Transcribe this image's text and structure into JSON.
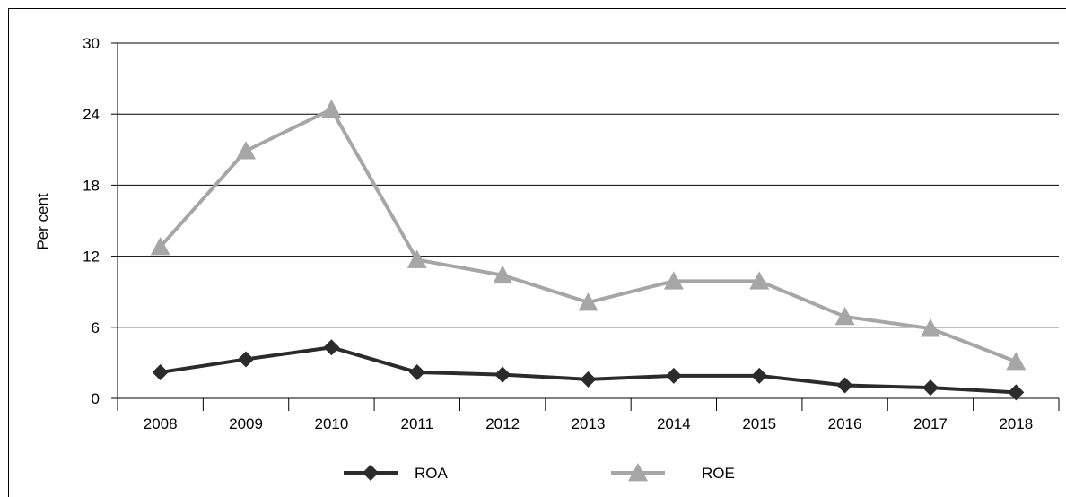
{
  "figure_title_clipped": "",
  "chart_data": {
    "type": "line",
    "title": "",
    "xlabel": "",
    "ylabel": "Per cent",
    "ylim": [
      0,
      30
    ],
    "yticks": [
      0,
      6,
      12,
      18,
      24,
      30
    ],
    "grid": "horizontal",
    "legend_position": "bottom",
    "categories": [
      "2008",
      "2009",
      "2010",
      "2011",
      "2012",
      "2013",
      "2014",
      "2015",
      "2016",
      "2017",
      "2018"
    ],
    "series": [
      {
        "name": "ROA",
        "marker": "diamond",
        "color": "#2b2b2b",
        "values": [
          2.2,
          3.3,
          4.3,
          2.2,
          2.0,
          1.6,
          1.9,
          1.9,
          1.1,
          0.9,
          0.5
        ]
      },
      {
        "name": "ROE",
        "marker": "triangle",
        "color": "#a6a6a6",
        "values": [
          12.8,
          20.9,
          24.4,
          11.7,
          10.4,
          8.1,
          9.9,
          9.9,
          6.9,
          5.9,
          3.1
        ]
      }
    ]
  }
}
